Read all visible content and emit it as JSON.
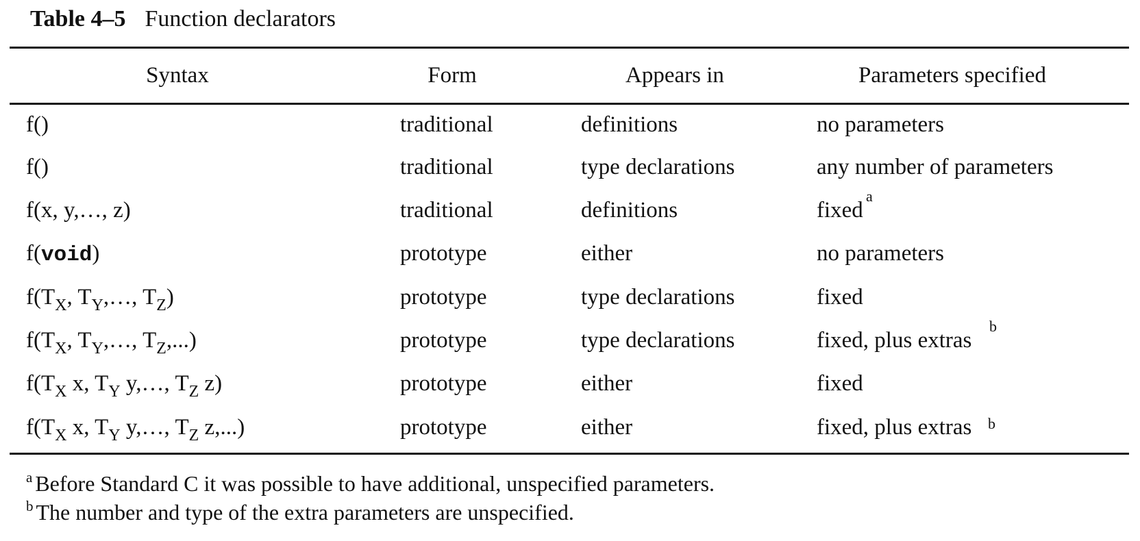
{
  "caption": {
    "label": "Table 4–5",
    "title": "Function declarators"
  },
  "headers": {
    "syntax": "Syntax",
    "form": "Form",
    "appears_in": "Appears in",
    "parameters": "Parameters specified"
  },
  "rows": [
    {
      "syntax": "f()",
      "form": "traditional",
      "appears_in": "definitions",
      "parameters": "no parameters"
    },
    {
      "syntax": "f()",
      "form": "traditional",
      "appears_in": "type declarations",
      "parameters": "any number of parameters"
    },
    {
      "syntax": "f(x, y,…, z)",
      "form": "traditional",
      "appears_in": "definitions",
      "parameters": "fixed",
      "parameters_note": "a"
    },
    {
      "syntax_prefix": "f(",
      "syntax_keyword": "void",
      "syntax_suffix": ")",
      "form": "prototype",
      "appears_in": "either",
      "parameters": "no parameters"
    },
    {
      "syntax_t": "T",
      "syntax_x": "X",
      "syntax_y": "Y",
      "syntax_z": "Z",
      "form": "prototype",
      "appears_in": "type declarations",
      "parameters": "fixed"
    },
    {
      "syntax_t": "T",
      "syntax_x": "X",
      "syntax_y": "Y",
      "syntax_z": "Z",
      "syntax_ellipsis": ",...",
      "form": "prototype",
      "appears_in": "type declarations",
      "parameters": "fixed, plus extras",
      "parameters_note": "b"
    },
    {
      "syntax_t": "T",
      "syntax_x": "X",
      "syntax_y": "Y",
      "syntax_z": "Z",
      "form": "prototype",
      "appears_in": "either",
      "parameters": "fixed"
    },
    {
      "syntax_t": "T",
      "syntax_x": "X",
      "syntax_y": "Y",
      "syntax_z": "Z",
      "syntax_ellipsis": ",...",
      "form": "prototype",
      "appears_in": "either",
      "parameters": "fixed, plus extras",
      "parameters_note": "b"
    }
  ],
  "footnotes": [
    {
      "mark": "a",
      "text": "Before Standard C it was possible to have additional, unspecified parameters."
    },
    {
      "mark": "b",
      "text": "The number and type of the extra parameters are unspecified."
    }
  ]
}
